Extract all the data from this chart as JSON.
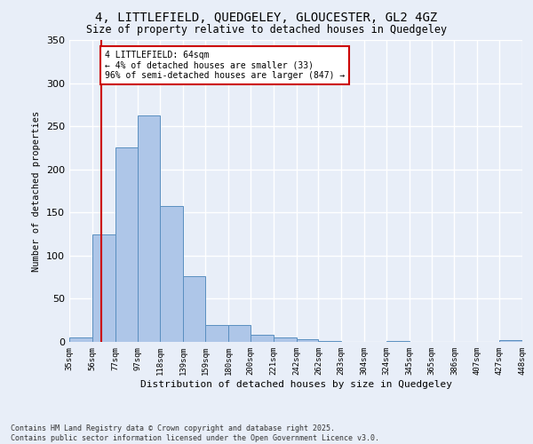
{
  "title_line1": "4, LITTLEFIELD, QUEDGELEY, GLOUCESTER, GL2 4GZ",
  "title_line2": "Size of property relative to detached houses in Quedgeley",
  "xlabel": "Distribution of detached houses by size in Quedgeley",
  "ylabel": "Number of detached properties",
  "fig_background_color": "#e8eef8",
  "bar_color": "#aec6e8",
  "bar_edge_color": "#5a8fc0",
  "grid_color": "#ffffff",
  "bin_edges": [
    35,
    56,
    77,
    97,
    118,
    139,
    159,
    180,
    200,
    221,
    242,
    262,
    283,
    304,
    324,
    345,
    365,
    386,
    407,
    427,
    448
  ],
  "bar_heights": [
    5,
    125,
    225,
    263,
    158,
    76,
    20,
    20,
    8,
    5,
    3,
    1,
    0,
    0,
    1,
    0,
    0,
    0,
    0,
    2
  ],
  "red_line_x": 64,
  "annotation_text": "4 LITTLEFIELD: 64sqm\n← 4% of detached houses are smaller (33)\n96% of semi-detached houses are larger (847) →",
  "annotation_box_color": "#ffffff",
  "red_line_color": "#cc0000",
  "ylim": [
    0,
    350
  ],
  "yticks": [
    0,
    50,
    100,
    150,
    200,
    250,
    300,
    350
  ],
  "footer_line1": "Contains HM Land Registry data © Crown copyright and database right 2025.",
  "footer_line2": "Contains public sector information licensed under the Open Government Licence v3.0.",
  "tick_labels": [
    "35sqm",
    "56sqm",
    "77sqm",
    "97sqm",
    "118sqm",
    "139sqm",
    "159sqm",
    "180sqm",
    "200sqm",
    "221sqm",
    "242sqm",
    "262sqm",
    "283sqm",
    "304sqm",
    "324sqm",
    "345sqm",
    "365sqm",
    "386sqm",
    "407sqm",
    "427sqm",
    "448sqm"
  ]
}
